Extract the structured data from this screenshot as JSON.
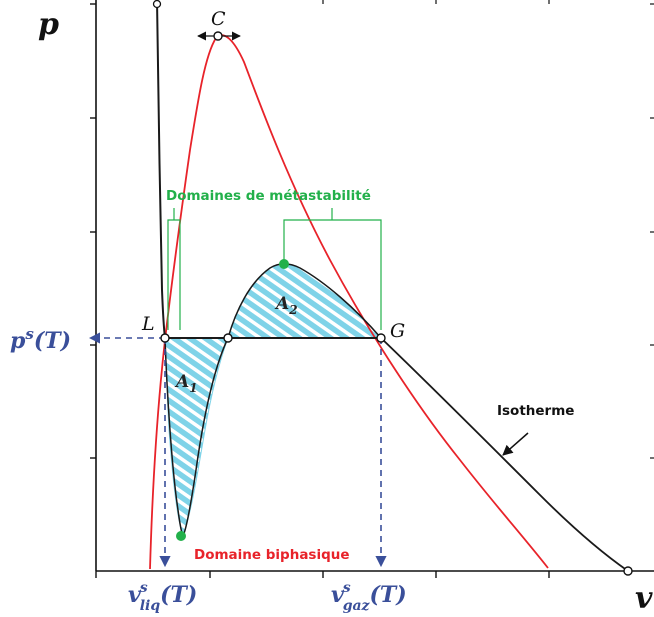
{
  "axes": {
    "y_symbol": "p",
    "x_symbol": "v"
  },
  "points": {
    "critical": "C",
    "liquid": "L",
    "gas": "G"
  },
  "labels": {
    "saturation_pressure_base": "p",
    "saturation_pressure_sup": "s",
    "saturation_pressure_arg": "(T)",
    "v_liq_base": "v",
    "v_liq_sup": "s",
    "v_liq_sub": "liq",
    "v_liq_arg": "(T)",
    "v_gas_base": "v",
    "v_gas_sup": "s",
    "v_gas_sub": "gaz",
    "v_gas_arg": "(T)",
    "metastability": "Domaines de métastabilité",
    "biphasic": "Domaine biphasique",
    "isotherm": "Isotherme",
    "area1_base": "A",
    "area1_sub": "1",
    "area2_base": "A",
    "area2_sub": "2"
  },
  "colors": {
    "isotherm": "#1a1a1a",
    "saturation_curve": "#e8232a",
    "hatch": "#7fd3e8",
    "metastability": "#22b04a",
    "blue_labels": "#3a4f9a",
    "guides": "#3a4f9a"
  }
}
